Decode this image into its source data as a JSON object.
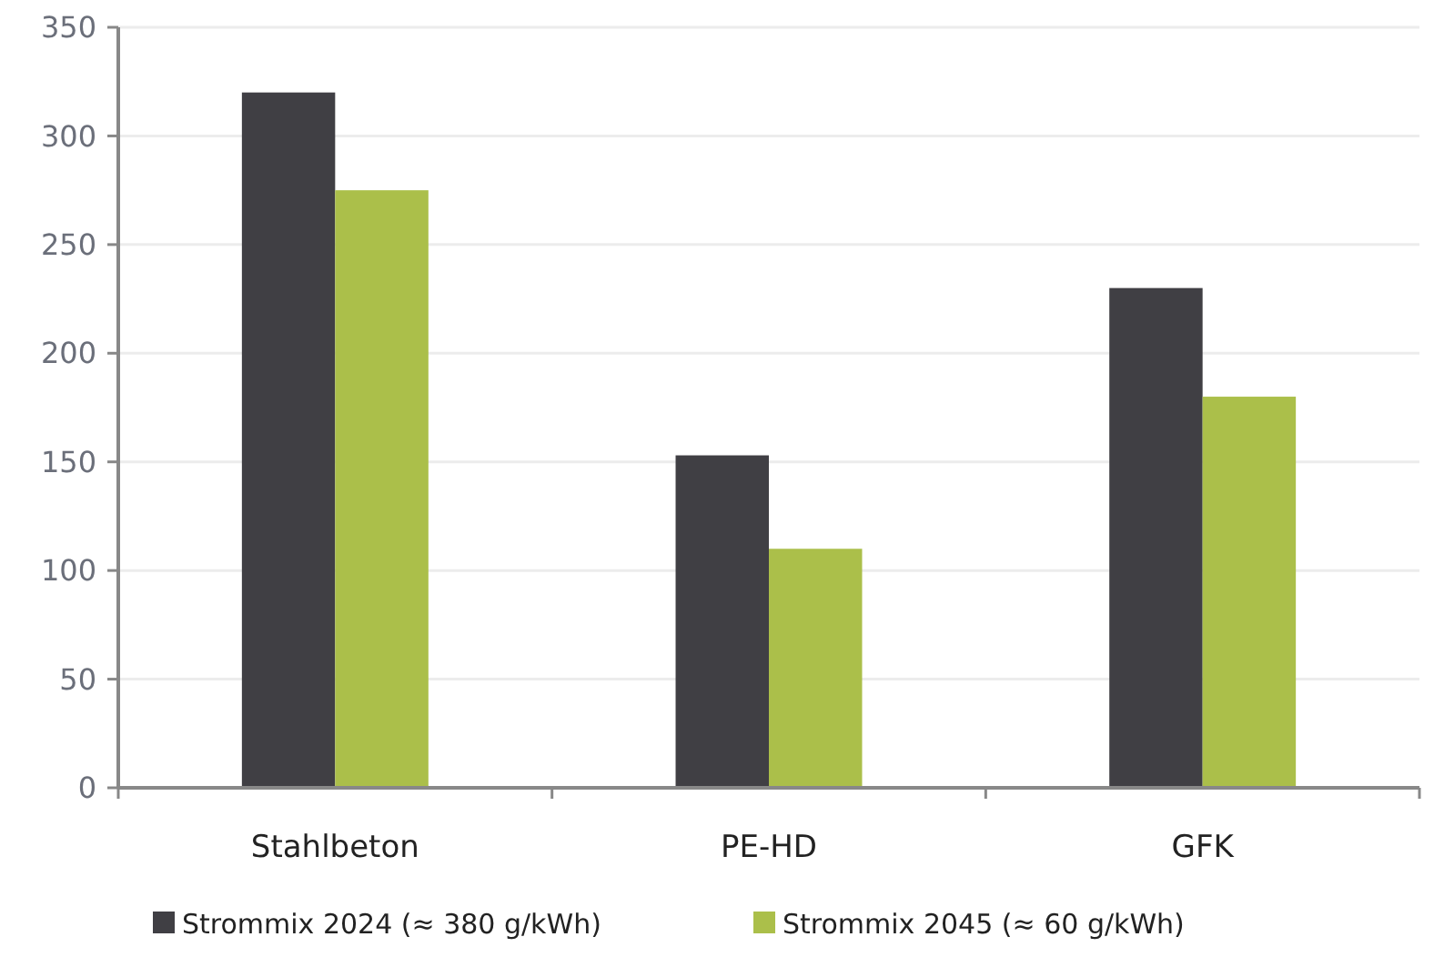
{
  "chart_data": {
    "type": "bar",
    "categories": [
      "Stahlbeton",
      "PE-HD",
      "GFK"
    ],
    "series": [
      {
        "name": "Strommix 2024 (≈ 380 g/kWh)",
        "color": "#403f44",
        "values": [
          320,
          153,
          230
        ]
      },
      {
        "name": "Strommix 2045 (≈ 60 g/kWh)",
        "color": "#abbf4a",
        "values": [
          275,
          110,
          180
        ]
      }
    ],
    "ylim": [
      0,
      350
    ],
    "yticks": [
      0,
      50,
      100,
      150,
      200,
      250,
      300,
      350
    ],
    "grid": "y",
    "legend": "bottom"
  }
}
